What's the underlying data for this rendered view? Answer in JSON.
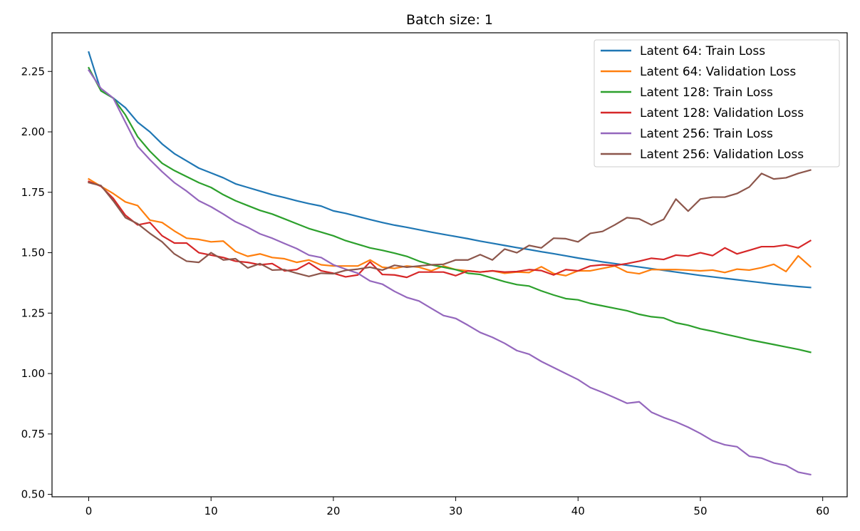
{
  "chart_data": {
    "type": "line",
    "title": "Batch size: 1",
    "xlabel": "",
    "ylabel": "",
    "xlim": [
      -3,
      62
    ],
    "ylim": [
      0.49,
      2.41
    ],
    "xticks": [
      0,
      10,
      20,
      30,
      40,
      50,
      60
    ],
    "yticks": [
      0.5,
      0.75,
      1.0,
      1.25,
      1.5,
      1.75,
      2.0,
      2.25
    ],
    "grid": false,
    "legend_position": "top-right",
    "series": [
      {
        "name": "Latent 64: Train Loss",
        "color": "#1f77b4",
        "values": [
          2.33,
          2.17,
          2.14,
          2.1,
          2.04,
          2.0,
          1.95,
          1.91,
          1.88,
          1.85,
          1.83,
          1.81,
          1.785,
          1.77,
          1.755,
          1.74,
          1.728,
          1.715,
          1.703,
          1.693,
          1.673,
          1.663,
          1.65,
          1.637,
          1.625,
          1.614,
          1.605,
          1.595,
          1.585,
          1.576,
          1.567,
          1.558,
          1.548,
          1.539,
          1.53,
          1.521,
          1.513,
          1.504,
          1.496,
          1.487,
          1.478,
          1.47,
          1.462,
          1.455,
          1.448,
          1.441,
          1.434,
          1.427,
          1.42,
          1.413,
          1.406,
          1.4,
          1.394,
          1.388,
          1.382,
          1.376,
          1.37,
          1.365,
          1.36,
          1.356
        ]
      },
      {
        "name": "Latent 64: Validation Loss",
        "color": "#ff7f0e",
        "values": [
          1.805,
          1.775,
          1.745,
          1.71,
          1.695,
          1.635,
          1.625,
          1.59,
          1.56,
          1.555,
          1.545,
          1.548,
          1.505,
          1.485,
          1.495,
          1.48,
          1.475,
          1.46,
          1.47,
          1.45,
          1.445,
          1.445,
          1.445,
          1.47,
          1.44,
          1.435,
          1.445,
          1.44,
          1.425,
          1.445,
          1.43,
          1.425,
          1.42,
          1.425,
          1.415,
          1.42,
          1.418,
          1.442,
          1.414,
          1.405,
          1.425,
          1.425,
          1.435,
          1.445,
          1.42,
          1.413,
          1.43,
          1.43,
          1.43,
          1.428,
          1.425,
          1.428,
          1.418,
          1.432,
          1.428,
          1.438,
          1.452,
          1.422,
          1.487,
          1.442
        ]
      },
      {
        "name": "Latent 128: Train Loss",
        "color": "#2ca02c",
        "values": [
          2.265,
          2.17,
          2.14,
          2.07,
          1.98,
          1.92,
          1.87,
          1.84,
          1.815,
          1.79,
          1.77,
          1.74,
          1.715,
          1.695,
          1.675,
          1.66,
          1.64,
          1.62,
          1.6,
          1.585,
          1.57,
          1.55,
          1.535,
          1.52,
          1.51,
          1.498,
          1.485,
          1.465,
          1.45,
          1.44,
          1.43,
          1.415,
          1.41,
          1.395,
          1.38,
          1.368,
          1.362,
          1.342,
          1.325,
          1.31,
          1.305,
          1.29,
          1.28,
          1.27,
          1.26,
          1.245,
          1.235,
          1.23,
          1.21,
          1.2,
          1.185,
          1.175,
          1.163,
          1.152,
          1.14,
          1.13,
          1.12,
          1.11,
          1.1,
          1.088
        ]
      },
      {
        "name": "Latent 128: Validation Loss",
        "color": "#d62728",
        "values": [
          1.795,
          1.775,
          1.725,
          1.655,
          1.615,
          1.625,
          1.57,
          1.54,
          1.54,
          1.5,
          1.49,
          1.48,
          1.465,
          1.46,
          1.45,
          1.455,
          1.425,
          1.43,
          1.458,
          1.425,
          1.415,
          1.4,
          1.408,
          1.462,
          1.41,
          1.408,
          1.398,
          1.42,
          1.42,
          1.42,
          1.405,
          1.425,
          1.42,
          1.425,
          1.42,
          1.422,
          1.43,
          1.426,
          1.408,
          1.43,
          1.425,
          1.445,
          1.45,
          1.447,
          1.455,
          1.465,
          1.477,
          1.472,
          1.49,
          1.486,
          1.5,
          1.488,
          1.52,
          1.495,
          1.51,
          1.525,
          1.525,
          1.532,
          1.52,
          1.55
        ]
      },
      {
        "name": "Latent 256: Train Loss",
        "color": "#9467bd",
        "values": [
          2.255,
          2.18,
          2.14,
          2.04,
          1.94,
          1.885,
          1.835,
          1.79,
          1.755,
          1.715,
          1.69,
          1.66,
          1.628,
          1.605,
          1.578,
          1.56,
          1.538,
          1.517,
          1.49,
          1.48,
          1.45,
          1.432,
          1.415,
          1.383,
          1.37,
          1.34,
          1.315,
          1.3,
          1.27,
          1.24,
          1.228,
          1.2,
          1.17,
          1.15,
          1.125,
          1.095,
          1.08,
          1.05,
          1.025,
          1.0,
          0.975,
          0.942,
          0.922,
          0.9,
          0.877,
          0.883,
          0.84,
          0.818,
          0.8,
          0.778,
          0.752,
          0.722,
          0.705,
          0.697,
          0.658,
          0.65,
          0.63,
          0.62,
          0.592,
          0.582
        ]
      },
      {
        "name": "Latent 256: Validation Loss",
        "color": "#8c564b",
        "values": [
          1.79,
          1.778,
          1.715,
          1.645,
          1.62,
          1.58,
          1.545,
          1.495,
          1.465,
          1.46,
          1.5,
          1.47,
          1.475,
          1.437,
          1.455,
          1.428,
          1.43,
          1.415,
          1.402,
          1.415,
          1.413,
          1.427,
          1.432,
          1.44,
          1.428,
          1.448,
          1.44,
          1.445,
          1.45,
          1.452,
          1.47,
          1.47,
          1.492,
          1.47,
          1.515,
          1.5,
          1.53,
          1.52,
          1.56,
          1.558,
          1.545,
          1.58,
          1.588,
          1.615,
          1.645,
          1.64,
          1.615,
          1.638,
          1.722,
          1.672,
          1.722,
          1.73,
          1.73,
          1.745,
          1.772,
          1.828,
          1.805,
          1.81,
          1.828,
          1.842
        ]
      }
    ]
  }
}
